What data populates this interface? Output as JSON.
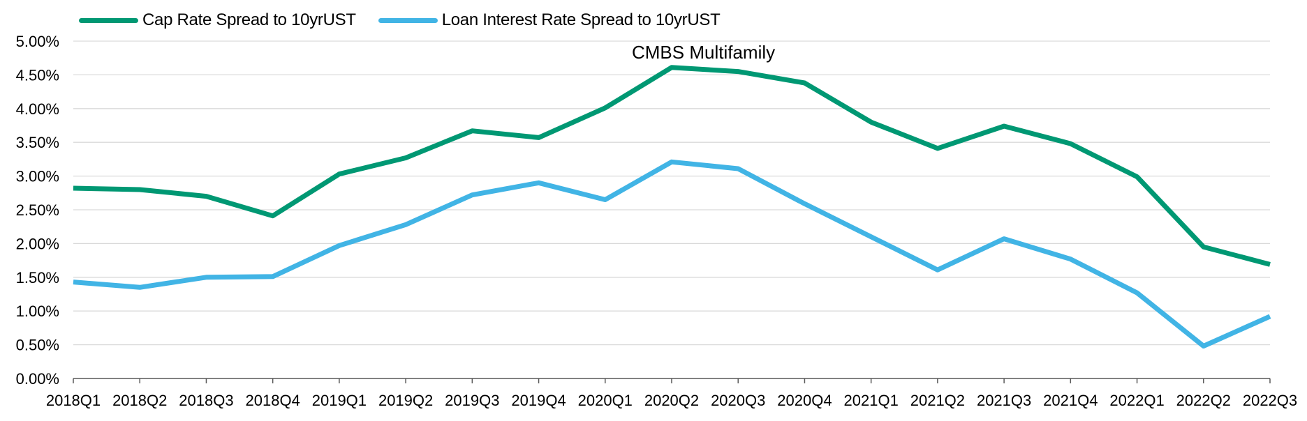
{
  "chart_data": {
    "type": "line",
    "title": "CMBS Multifamily",
    "xlabel": "",
    "ylabel": "",
    "ylim": [
      0,
      5
    ],
    "yticks": [
      "0.00%",
      "0.50%",
      "1.00%",
      "1.50%",
      "2.00%",
      "2.50%",
      "3.00%",
      "3.50%",
      "4.00%",
      "4.50%",
      "5.00%"
    ],
    "grid": true,
    "legend_position": "top-left",
    "categories": [
      "2018Q1",
      "2018Q2",
      "2018Q3",
      "2018Q4",
      "2019Q1",
      "2019Q2",
      "2019Q3",
      "2019Q4",
      "2020Q1",
      "2020Q2",
      "2020Q3",
      "2020Q4",
      "2021Q1",
      "2021Q2",
      "2021Q3",
      "2021Q4",
      "2022Q1",
      "2022Q2",
      "2022Q3"
    ],
    "series": [
      {
        "name": "Cap Rate Spread to 10yrUST",
        "color": "#009873",
        "values": [
          2.82,
          2.8,
          2.7,
          2.41,
          3.03,
          3.27,
          3.67,
          3.57,
          4.01,
          4.61,
          4.55,
          4.38,
          3.8,
          3.41,
          3.74,
          3.48,
          2.99,
          1.95,
          1.69
        ]
      },
      {
        "name": "Loan Interest Rate Spread to 10yrUST",
        "color": "#41b4e5",
        "values": [
          1.43,
          1.35,
          1.5,
          1.51,
          1.97,
          2.28,
          2.72,
          2.9,
          2.65,
          3.21,
          3.11,
          2.59,
          2.1,
          1.61,
          2.07,
          1.77,
          1.27,
          0.48,
          0.92
        ]
      }
    ]
  },
  "legend": {
    "items": [
      {
        "label": "Cap Rate Spread to 10yrUST",
        "color": "#009873"
      },
      {
        "label": "Loan Interest Rate Spread to 10yrUST",
        "color": "#41b4e5"
      }
    ]
  },
  "colors": {
    "grid": "#d9d9d9",
    "axis": "#595959",
    "text": "#000000"
  }
}
